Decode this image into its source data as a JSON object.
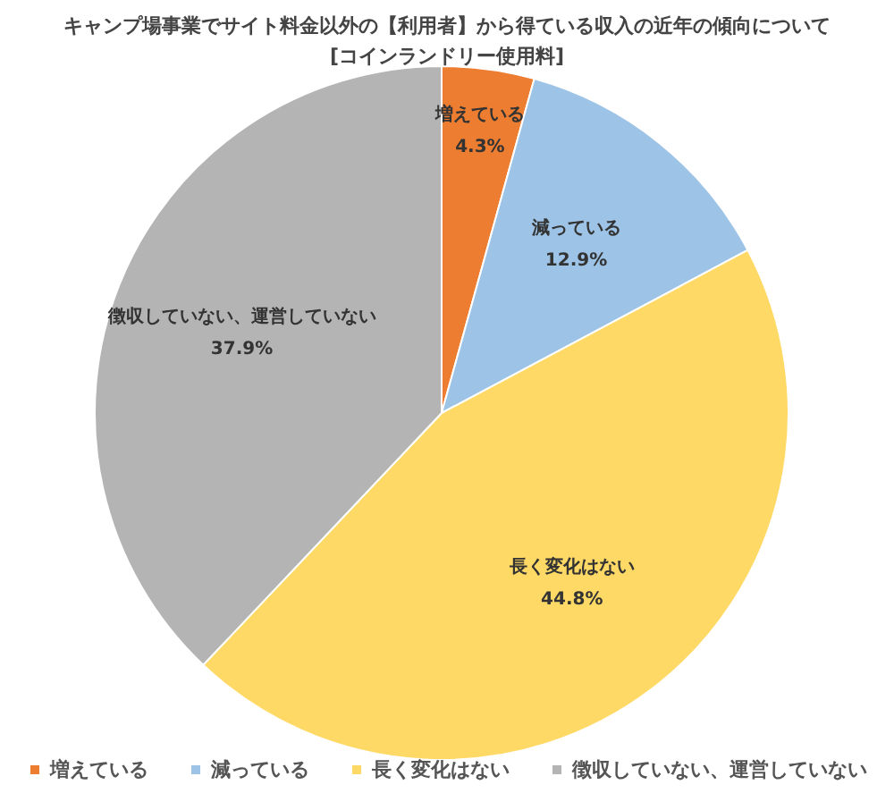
{
  "chart_data": {
    "type": "pie",
    "title": "キャンプ場事業でサイト料金以外の【利用者】から得ている収入の近年の傾向について",
    "subtitle": "[コインランドリー使用料]",
    "categories": [
      "増えている",
      "減っている",
      "長く変化はない",
      "徴収していない、運営していない"
    ],
    "values": [
      4.3,
      12.9,
      44.8,
      37.9
    ],
    "colors": [
      "#ed7d31",
      "#9dc3e6",
      "#ffd966",
      "#b4b4b4"
    ],
    "value_labels": [
      "4.3%",
      "12.9%",
      "44.8%",
      "37.9%"
    ],
    "legend": "bottom"
  }
}
